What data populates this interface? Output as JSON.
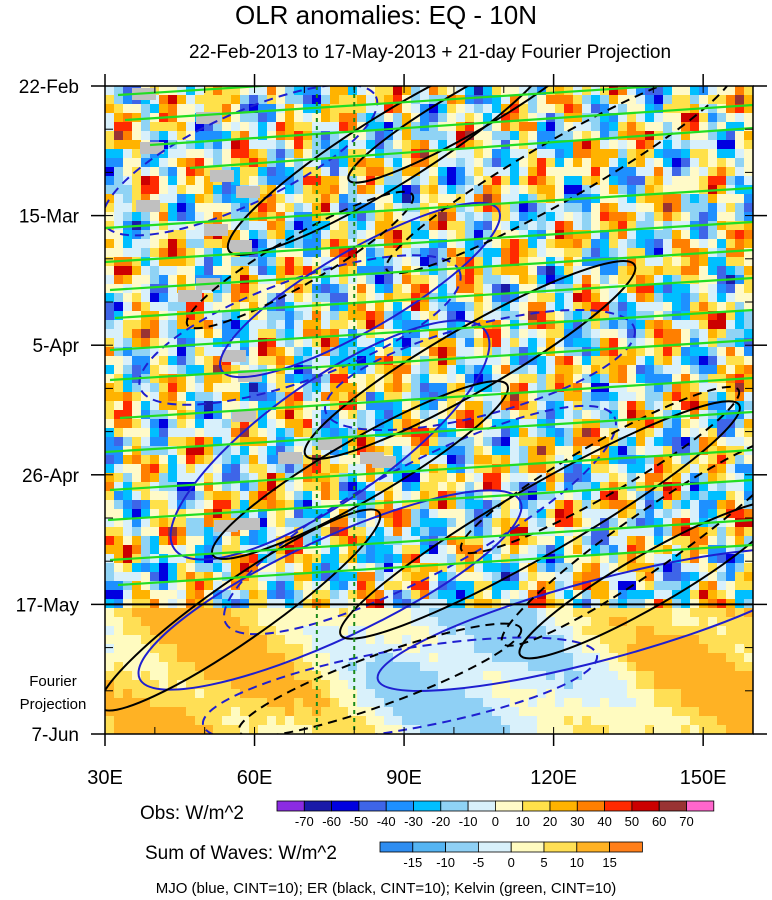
{
  "chart_data": {
    "type": "heatmap",
    "title": "OLR anomalies: EQ - 10N",
    "subtitle": "22-Feb-2013 to 17-May-2013 + 21-day Fourier Projection",
    "x_ticks": [
      "30E",
      "60E",
      "90E",
      "120E",
      "150E"
    ],
    "x_tick_values": [
      30,
      60,
      90,
      120,
      150
    ],
    "xlim": [
      30,
      160
    ],
    "y_ticks": [
      "22-Feb",
      "15-Mar",
      "5-Apr",
      "26-Apr",
      "17-May",
      "7-Jun"
    ],
    "y_tick_days": [
      0,
      21,
      42,
      63,
      84,
      105
    ],
    "ylim_days": [
      0,
      105
    ],
    "observation_end_day": 84,
    "projection_label": "Fourier Projection",
    "reference_longitudes": [
      72.5,
      80
    ],
    "obs_colorbar": {
      "title": "Obs: W/m^2",
      "labels": [
        "-70",
        "-60",
        "-50",
        "-40",
        "-30",
        "-20",
        "-10",
        "0",
        "10",
        "20",
        "30",
        "40",
        "50",
        "60",
        "70"
      ],
      "colors": [
        "#8b2be2",
        "#1a1aa8",
        "#0000e0",
        "#3e65e8",
        "#1e90ff",
        "#00bfff",
        "#8fd3f5",
        "#d8f0fb",
        "#fffac8",
        "#ffe14a",
        "#ffb300",
        "#ff7f00",
        "#ff2a00",
        "#cc0000",
        "#993333",
        "#ff66cc"
      ]
    },
    "waves_colorbar": {
      "title": "Sum of Waves: W/m^2",
      "labels": [
        "-15",
        "-10",
        "-5",
        "0",
        "5",
        "10",
        "15"
      ],
      "colors": [
        "#2f8df0",
        "#55b4f2",
        "#8fd0f5",
        "#d9f1fb",
        "#fffbc0",
        "#ffdf55",
        "#ffb224",
        "#ff7f1a"
      ]
    },
    "contour_legend": "MJO (blue, CINT=10); ER (black, CINT=10); Kelvin (green, CINT=10)",
    "series_colors": {
      "MJO": "#1f1fd0",
      "ER": "#000000",
      "Kelvin": "#22dd22"
    }
  }
}
